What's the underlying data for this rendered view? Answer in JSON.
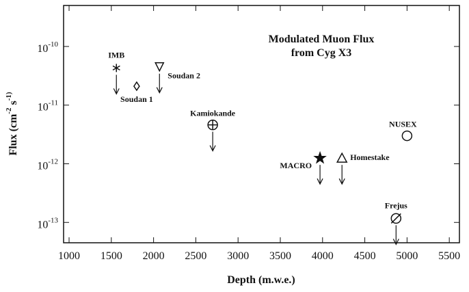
{
  "chart_data": {
    "type": "scatter",
    "title": [
      "Modulated Muon Flux",
      "from Cyg X3"
    ],
    "x_label": "Depth (m.w.e.)",
    "y_label": "Flux (cm^-2 s^-1)",
    "x": [
      1560,
      1800,
      2070,
      2700,
      3970,
      4230,
      4870,
      5000
    ],
    "values": [
      4.3e-11,
      2.1e-11,
      4.5e-11,
      4.6e-12,
      1.25e-12,
      1.25e-12,
      1.17e-13,
      3e-12
    ],
    "labels": [
      "IMB",
      "Soudan 1",
      "Soudan 2",
      "Kamiokande",
      "MACRO",
      "Homestake",
      "Frejus",
      "NUSEX"
    ],
    "markers": [
      "asterisk",
      "diamond",
      "triangle-down",
      "circle-plus",
      "star",
      "triangle-up",
      "circle-slash",
      "circle"
    ],
    "upper_limit": [
      true,
      false,
      true,
      true,
      true,
      true,
      true,
      false
    ],
    "color": "#111111",
    "xlim": [
      935,
      5620
    ],
    "ylim": [
      5e-10,
      4.5e-14
    ],
    "log_y": true,
    "xticks": [
      1000,
      1500,
      2000,
      2500,
      3000,
      3500,
      4000,
      4500,
      5000,
      5500
    ],
    "yticks": [
      {
        "value": 1e-10,
        "label": "10^-10"
      },
      {
        "value": 1e-11,
        "label": "10^-11"
      },
      {
        "value": 1e-12,
        "label": "10^-12"
      },
      {
        "value": 1e-13,
        "label": "10^-13"
      }
    ]
  }
}
